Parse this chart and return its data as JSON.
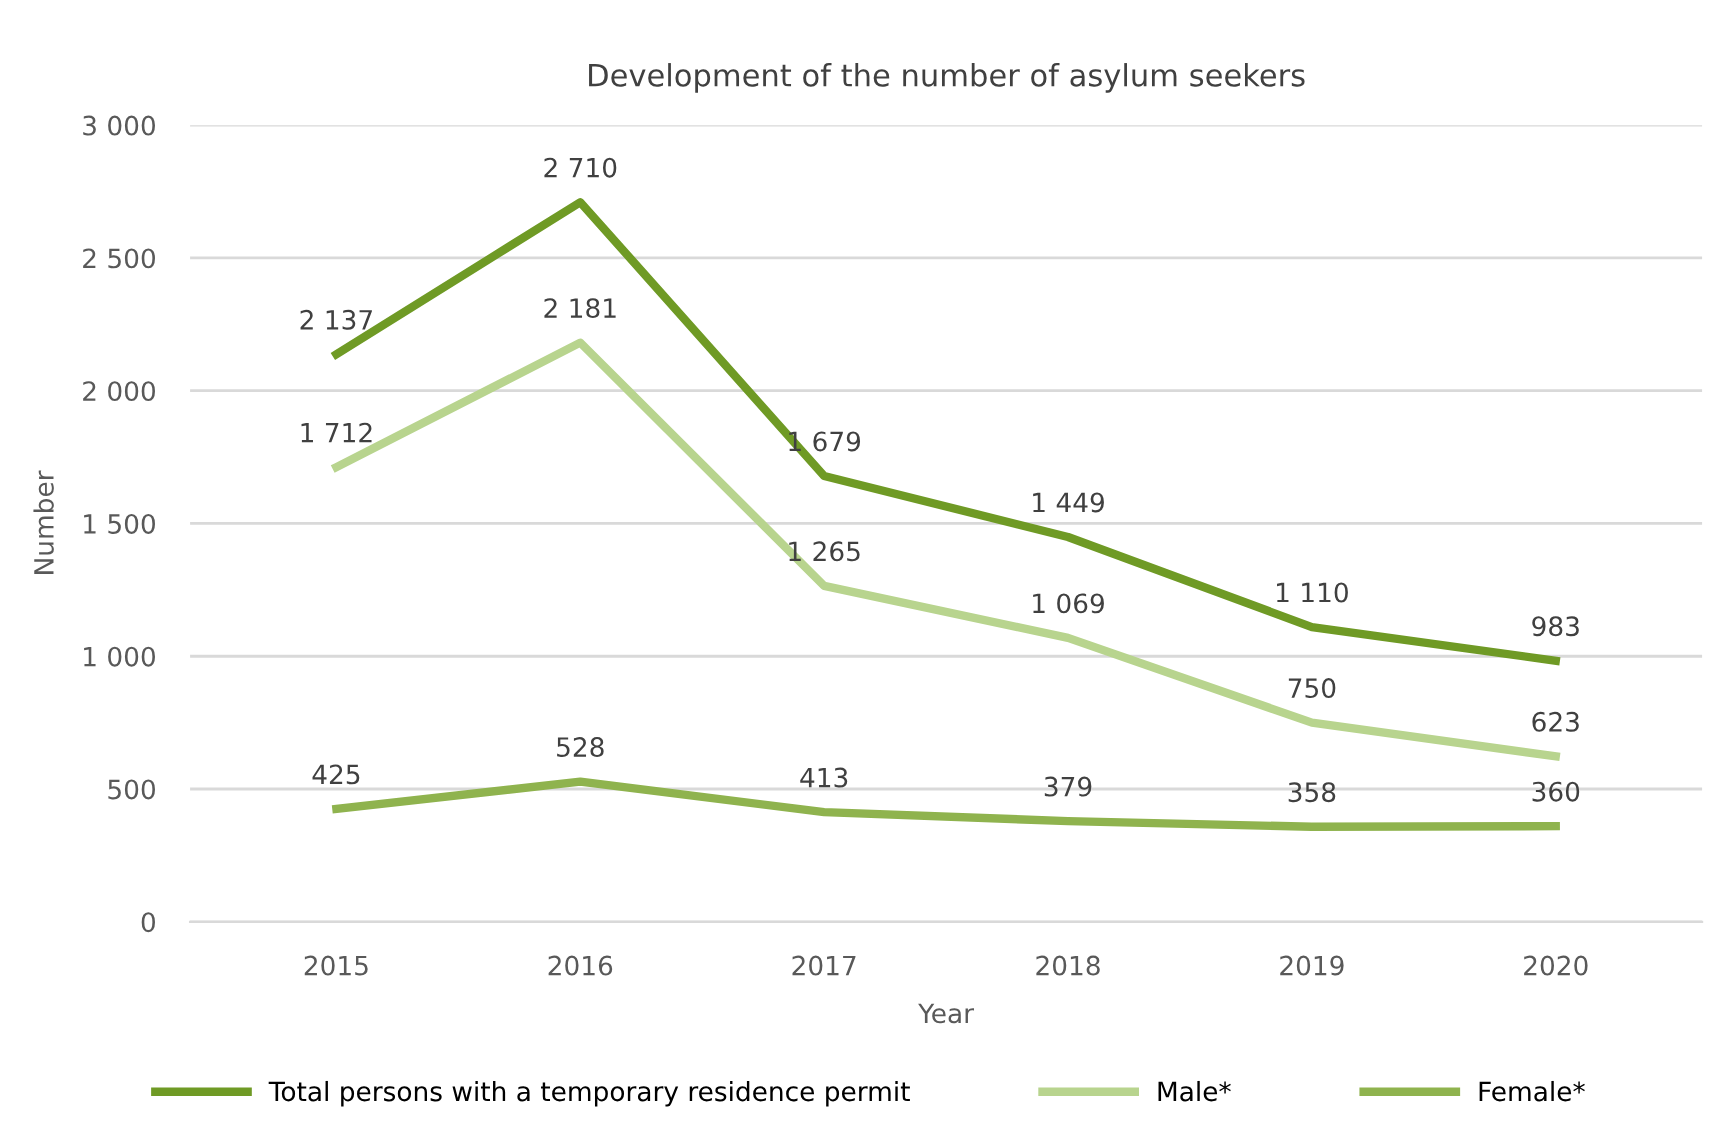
{
  "chart_data": {
    "type": "line",
    "title": "Development of the number of asylum seekers",
    "xlabel": "Year",
    "ylabel": "Number",
    "categories": [
      "2015",
      "2016",
      "2017",
      "2018",
      "2019",
      "2020"
    ],
    "series": [
      {
        "name": "Total persons with a temporary residence permit",
        "color": "#6f9a25",
        "values": [
          2137,
          2710,
          1679,
          1449,
          1110,
          983
        ],
        "value_labels": [
          "2 137",
          "2 710",
          "1 679",
          "1 449",
          "1 110",
          "983"
        ]
      },
      {
        "name": "Male*",
        "color": "#b8d48e",
        "values": [
          1712,
          2181,
          1265,
          1069,
          750,
          623
        ],
        "value_labels": [
          "1 712",
          "2 181",
          "1 265",
          "1 069",
          "750",
          "623"
        ]
      },
      {
        "name": "Female*",
        "color": "#8fb34e",
        "values": [
          425,
          528,
          413,
          379,
          358,
          360
        ],
        "value_labels": [
          "425",
          "528",
          "413",
          "379",
          "358",
          "360"
        ]
      }
    ],
    "ylim": [
      0,
      3000
    ],
    "yticks": [
      0,
      500,
      {
        "value": 1000,
        "label": "1 000"
      },
      {
        "value": 1500,
        "label": "1 500"
      },
      {
        "value": 2000,
        "label": "2 000"
      },
      {
        "value": 2500,
        "label": "2 500"
      },
      {
        "value": 3000,
        "label": "3 000"
      }
    ],
    "grid": "y",
    "legend": "bottom",
    "marker": "none",
    "line_style": "solid"
  }
}
